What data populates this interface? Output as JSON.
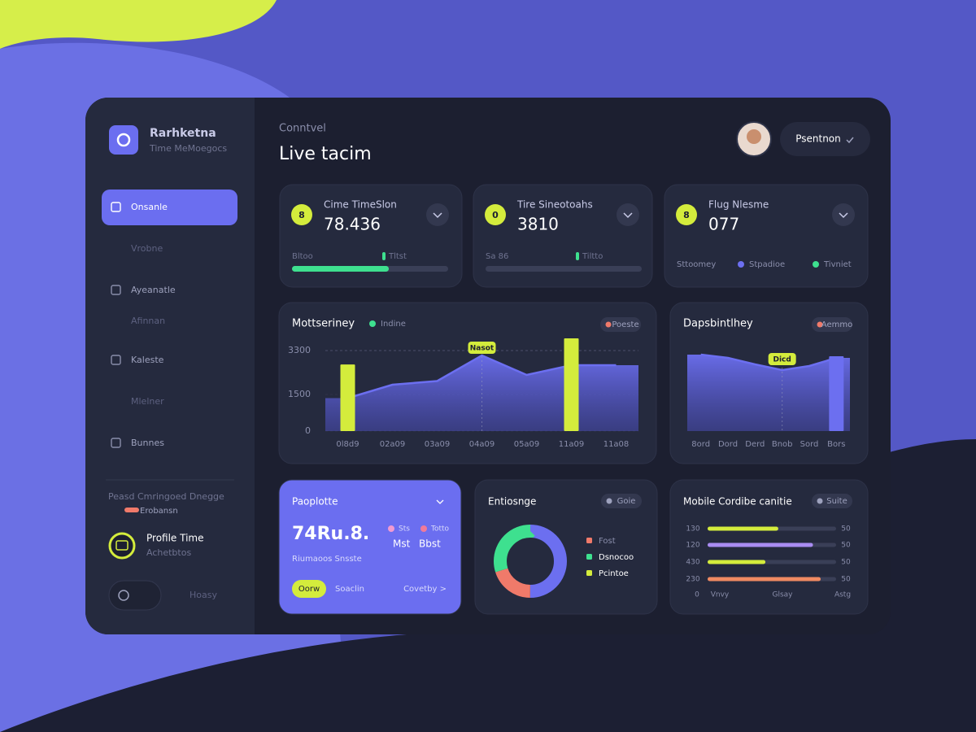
{
  "sidebar": {
    "brand": "Rarhketna",
    "subtitle": "Time MeMoegocs",
    "nav": [
      "Onsanle",
      "Vrobne",
      "Ayeanatle",
      "Afinnan",
      "Kaleste",
      "Mlelner",
      "Bunnes"
    ],
    "section": "Peasd Cmringoed Dnegge",
    "tag": "Erobansn",
    "profile": {
      "name": "Profile Time",
      "role": "Achetbtos"
    },
    "footer": "Hoasy"
  },
  "header": {
    "breadcrumb": "Conntvel",
    "title": "Live tacim",
    "button": "Psentnon"
  },
  "stats": [
    {
      "icon": "8",
      "title": "Cime TimeSlon",
      "value": "78.436",
      "left": "Bltoo",
      "right": "Tltst",
      "progress": 62
    },
    {
      "icon": "0",
      "title": "Tire Sineotoahs",
      "value": "3810",
      "left": "Sa 86",
      "right": "Tiltto"
    },
    {
      "icon": "8",
      "title": "Flug Nlesme",
      "value": "077",
      "legend": [
        "Sttoomey",
        "Stpadioe",
        "Tivniet"
      ]
    }
  ],
  "promo": {
    "title": "Paoplotte",
    "value": "74Ru.8.",
    "legend": [
      "Sts",
      "Totto"
    ],
    "sub": [
      "Mst",
      "Bbst"
    ],
    "caption": "Riumaoos Snsste",
    "button": "Oorw",
    "link1": "Soaclin",
    "link2": "Covetby >"
  },
  "chart_data": [
    {
      "type": "area-bar",
      "title": "Mottseriney",
      "badge": "Poeste",
      "annotation": "Nasot",
      "categories": [
        "0l8d9",
        "02a09",
        "03a09",
        "04a09",
        "05a09",
        "11a09",
        "11a08"
      ],
      "series": [
        {
          "name": "Indine",
          "type": "area",
          "color": "#6c6ff0",
          "values": [
            1350,
            1900,
            2050,
            3100,
            2300,
            2700,
            2700
          ]
        },
        {
          "type": "bar",
          "color": "#d4ec3c",
          "values": [
            2730,
            null,
            null,
            null,
            null,
            3800,
            null
          ]
        }
      ],
      "ylim": [
        0,
        3800
      ],
      "yticks": [
        0,
        1500,
        3300
      ],
      "grid": true
    },
    {
      "type": "area-bar",
      "title": "Dapsbintlhey",
      "badge": "Aemmo",
      "annotation": "Dicd",
      "categories": [
        "8ord",
        "Dord",
        "Derd",
        "Bnob",
        "Sord",
        "Bors"
      ],
      "series": [
        {
          "type": "area",
          "color": "#6c6ff0",
          "values": [
            94,
            90,
            82,
            75,
            80,
            90
          ]
        },
        {
          "type": "bar",
          "color": "#6c6ff0",
          "values": [
            null,
            null,
            null,
            null,
            null,
            92
          ]
        }
      ],
      "ylim": [
        0,
        100
      ]
    },
    {
      "type": "donut",
      "title": "Entiosnge",
      "badge": "Goie",
      "values": [
        50,
        20,
        30
      ],
      "colors": [
        "#6c6ff0",
        "#f07a6a",
        "#3ee08f"
      ],
      "legend": [
        {
          "name": "Fost",
          "color": "#f07a6a"
        },
        {
          "name": "Dsnocoo",
          "color": "#3ee08f"
        },
        {
          "name": "Pcintoe",
          "color": "#d4ec3c"
        }
      ]
    },
    {
      "type": "hbar",
      "title": "Mobile Cordibe canitie",
      "badge": "Suite",
      "categories": [
        "130",
        "120",
        "430",
        "230"
      ],
      "right_labels": [
        "50",
        "50",
        "50",
        "50"
      ],
      "values": [
        55,
        82,
        45,
        88
      ],
      "colors": [
        "#d4ec3c",
        "#a98cf2",
        "#d4ec3c",
        "#f08a62"
      ],
      "xlim": [
        0,
        100
      ],
      "xlabels": [
        "0",
        "Vnvy",
        "Glsay",
        "Astg"
      ]
    }
  ]
}
